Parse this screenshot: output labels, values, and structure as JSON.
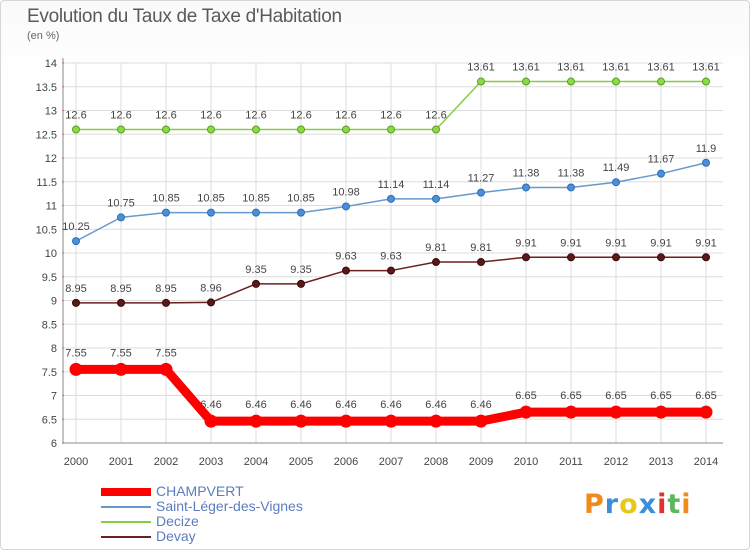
{
  "title": "Evolution du Taux de Taxe d'Habitation",
  "unit": "(en %)",
  "logo": "Proxiti",
  "colors": {
    "champvert": "#ff0000",
    "saint_leger": "#6699cc",
    "decize": "#88cc44",
    "devay": "#6b1f1f",
    "grid": "#dddddd",
    "axis": "#888888",
    "text": "#444444"
  },
  "chart_data": {
    "type": "line",
    "title": "Evolution du Taux de Taxe d'Habitation",
    "ylabel": "(en %)",
    "xlabel": "",
    "x": [
      "2000",
      "2001",
      "2002",
      "2003",
      "2004",
      "2005",
      "2006",
      "2007",
      "2008",
      "2009",
      "2010",
      "2011",
      "2012",
      "2013",
      "2014"
    ],
    "ylim": [
      6,
      14
    ],
    "yticks": [
      "6",
      "6.5",
      "7",
      "7.5",
      "8",
      "8.5",
      "9",
      "9.5",
      "10",
      "10.5",
      "11",
      "11.5",
      "12",
      "12.5",
      "13",
      "13.5",
      "14"
    ],
    "grid": true,
    "legend_position": "bottom-left",
    "series": [
      {
        "name": "CHAMPVERT",
        "values": [
          7.55,
          7.55,
          7.55,
          6.46,
          6.46,
          6.46,
          6.46,
          6.46,
          6.46,
          6.46,
          6.65,
          6.65,
          6.65,
          6.65,
          6.65
        ],
        "labels": [
          "7.55",
          "7.55",
          "7.55",
          "6.46",
          "6.46",
          "6.46",
          "6.46",
          "6.46",
          "6.46",
          "6.46",
          "6.65",
          "6.65",
          "6.65",
          "6.65",
          "6.65"
        ],
        "color": "#ff0000"
      },
      {
        "name": "Saint-Léger-des-Vignes",
        "values": [
          10.25,
          10.75,
          10.85,
          10.85,
          10.85,
          10.85,
          10.98,
          11.14,
          11.14,
          11.27,
          11.38,
          11.38,
          11.49,
          11.67,
          11.9
        ],
        "labels": [
          "10.25",
          "10.75",
          "10.85",
          "10.85",
          "10.85",
          "10.85",
          "10.98",
          "11.14",
          "11.14",
          "11.27",
          "11.38",
          "11.38",
          "11.49",
          "11.67",
          "11.9"
        ],
        "color": "#6699cc"
      },
      {
        "name": "Decize",
        "values": [
          12.6,
          12.6,
          12.6,
          12.6,
          12.6,
          12.6,
          12.6,
          12.6,
          12.6,
          13.61,
          13.61,
          13.61,
          13.61,
          13.61,
          13.61
        ],
        "labels": [
          "12.6",
          "12.6",
          "12.6",
          "12.6",
          "12.6",
          "12.6",
          "12.6",
          "12.6",
          "12.6",
          "13.61",
          "13.61",
          "13.61",
          "13.61",
          "13.61",
          "13.61"
        ],
        "color": "#88cc44"
      },
      {
        "name": "Devay",
        "values": [
          8.95,
          8.95,
          8.95,
          8.96,
          9.35,
          9.35,
          9.63,
          9.63,
          9.81,
          9.81,
          9.91,
          9.91,
          9.91,
          9.91,
          9.91
        ],
        "labels": [
          "8.95",
          "8.95",
          "8.95",
          "8.96",
          "9.35",
          "9.35",
          "9.63",
          "9.63",
          "9.81",
          "9.81",
          "9.91",
          "9.91",
          "9.91",
          "9.91",
          "9.91"
        ],
        "color": "#6b1f1f"
      }
    ]
  }
}
